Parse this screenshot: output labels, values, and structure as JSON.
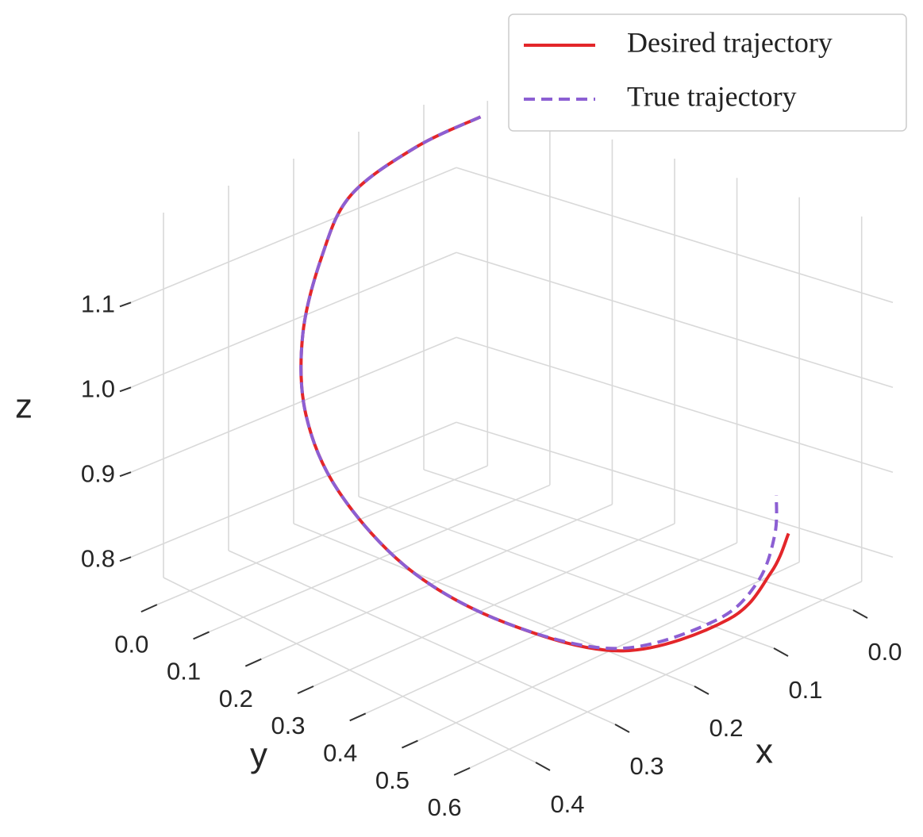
{
  "chart_data": {
    "type": "line3d",
    "xlabel": "x",
    "ylabel": "y",
    "zlabel": "z",
    "xlim": [
      -0.05,
      0.45
    ],
    "ylim": [
      -0.05,
      0.65
    ],
    "zlim": [
      0.76,
      1.19
    ],
    "xticks": [
      {
        "value": 0,
        "label": "0.0"
      },
      0.1,
      0.2,
      0.3,
      0.4
    ],
    "yticks": [
      {
        "value": 0,
        "label": "0.0"
      },
      0.1,
      0.2,
      0.3,
      0.4,
      0.5,
      0.6
    ],
    "zticks": [
      0.8,
      0.9,
      {
        "value": 1,
        "label": "1.0"
      },
      1.1
    ],
    "grid": true,
    "legend": "upper right",
    "series": [
      {
        "name": "Desired trajectory",
        "color": "#e3262a",
        "dash": false,
        "x": [
          -0.03,
          0.04,
          0.13,
          0.2,
          0.28,
          0.34,
          0.37,
          0.36,
          0.31,
          0.24,
          0.12,
          0.05,
          0.02
        ],
        "y": [
          0.01,
          -0.02,
          -0.03,
          0,
          0.06,
          0.14,
          0.24,
          0.36,
          0.47,
          0.58,
          0.6,
          0.58,
          0.57
        ],
        "z": [
          1.18,
          1.16,
          1.13,
          1.09,
          1.04,
          0.99,
          0.94,
          0.88,
          0.83,
          0.8,
          0.79,
          0.81,
          0.84
        ]
      },
      {
        "name": "True trajectory",
        "color": "#8c5fd3",
        "dash": true,
        "x": [
          -0.03,
          0.04,
          0.13,
          0.2,
          0.28,
          0.34,
          0.37,
          0.36,
          0.31,
          0.24,
          0.13,
          0.06,
          0.03,
          0.02
        ],
        "y": [
          0.01,
          -0.02,
          -0.03,
          0,
          0.06,
          0.14,
          0.24,
          0.36,
          0.47,
          0.57,
          0.59,
          0.57,
          0.56,
          0.55
        ],
        "z": [
          1.18,
          1.16,
          1.13,
          1.09,
          1.04,
          0.99,
          0.94,
          0.88,
          0.83,
          0.8,
          0.79,
          0.8,
          0.84,
          0.88
        ]
      }
    ]
  }
}
